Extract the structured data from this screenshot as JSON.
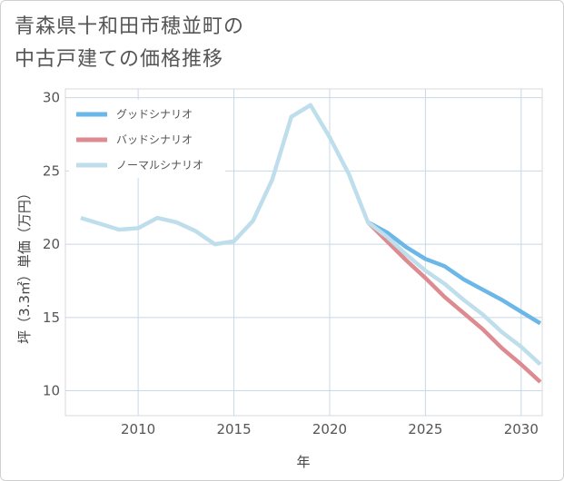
{
  "title_lines": [
    "青森県十和田市穂並町の",
    "中古戸建ての価格推移"
  ],
  "chart_data": {
    "type": "line",
    "xlabel": "年",
    "ylabel": "坪（3.3㎡）単価（万円）",
    "xlim": [
      2006.2,
      2031.1
    ],
    "ylim": [
      8.3,
      30.6
    ],
    "xticks": [
      2010,
      2015,
      2020,
      2025,
      2030
    ],
    "yticks": [
      10,
      15,
      20,
      25,
      30
    ],
    "grid": true,
    "legend_position": "top-left",
    "series": [
      {
        "name": "グッドシナリオ",
        "color": "#6ab7e8",
        "x": [
          2022,
          2023,
          2024,
          2025,
          2026,
          2027,
          2028,
          2029,
          2030,
          2031
        ],
        "y": [
          21.5,
          20.8,
          19.8,
          19.0,
          18.5,
          17.6,
          16.9,
          16.2,
          15.4,
          14.6
        ]
      },
      {
        "name": "バッドシナリオ",
        "color": "#de8a91",
        "x": [
          2022,
          2023,
          2024,
          2025,
          2026,
          2027,
          2028,
          2029,
          2030,
          2031
        ],
        "y": [
          21.5,
          20.2,
          18.9,
          17.7,
          16.4,
          15.3,
          14.2,
          12.9,
          11.8,
          10.6
        ]
      },
      {
        "name": "ノーマルシナリオ",
        "color": "#bfdeec",
        "x": [
          2007,
          2008,
          2009,
          2010,
          2011,
          2012,
          2013,
          2014,
          2015,
          2016,
          2017,
          2018,
          2019,
          2020,
          2021,
          2022,
          2023,
          2024,
          2025,
          2026,
          2027,
          2028,
          2029,
          2030,
          2031
        ],
        "y": [
          21.8,
          21.4,
          21.0,
          21.1,
          21.8,
          21.5,
          20.9,
          20.0,
          20.2,
          21.6,
          24.4,
          28.7,
          29.5,
          27.3,
          24.8,
          21.5,
          20.5,
          19.3,
          18.2,
          17.3,
          16.2,
          15.2,
          14.0,
          13.0,
          11.8
        ]
      }
    ]
  }
}
